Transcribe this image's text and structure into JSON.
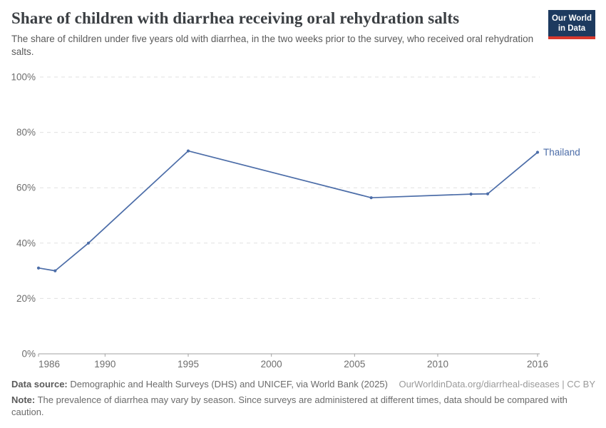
{
  "header": {
    "title": "Share of children with diarrhea receiving oral rehydration salts",
    "subtitle": "The share of children under five years old with diarrhea, in the two weeks prior to the survey, who received oral rehydration salts.",
    "logo": {
      "line1": "Our World",
      "line2": "in Data",
      "bg_color": "#1d3a5f",
      "accent_color": "#d7382d"
    }
  },
  "chart_data": {
    "type": "line",
    "title": "Share of children with diarrhea receiving oral rehydration salts",
    "xlabel": "",
    "ylabel": "",
    "xlim": [
      1986,
      2016
    ],
    "ylim": [
      0,
      100
    ],
    "x_ticks": [
      1986,
      1990,
      1995,
      2000,
      2005,
      2010,
      2016
    ],
    "y_ticks": [
      0,
      20,
      40,
      60,
      80,
      100
    ],
    "y_unit": "%",
    "grid": "horizontal-dashed",
    "legend_position": "end-of-line-label",
    "series": [
      {
        "name": "Thailand",
        "color": "#4c6da8",
        "points": [
          [
            1986,
            31
          ],
          [
            1987,
            30
          ],
          [
            1989,
            40
          ],
          [
            1995,
            73.3
          ],
          [
            2006,
            56.4
          ],
          [
            2012,
            57.7
          ],
          [
            2013,
            57.8
          ],
          [
            2016,
            72.8
          ]
        ]
      }
    ],
    "colors": {
      "grid": "#e0e0e0",
      "axis": "#a2a2a2",
      "tick_label": "#6e6e6e"
    }
  },
  "footer": {
    "datasource_label": "Data source:",
    "datasource_text": " Demographic and Health Surveys (DHS) and UNICEF, via World Bank (2025)",
    "link_text": "OurWorldinData.org/diarrheal-diseases | CC BY",
    "note_label": "Note:",
    "note_text": " The prevalence of diarrhea may vary by season. Since surveys are administered at different times, data should be compared with caution."
  }
}
